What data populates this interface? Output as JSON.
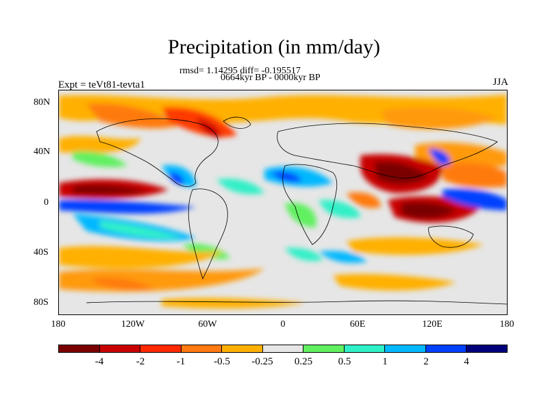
{
  "title": "Precipitation (in mm/day)",
  "stats": "rmsd= 1.14295 diff= -0.195517",
  "period": "0664kyr BP - 0000kyr BP",
  "experiment": "Expt = teVt81-tevta1",
  "season": "JJA",
  "lat_ticks": [
    "80N",
    "40N",
    "0",
    "40S",
    "80S"
  ],
  "lon_ticks": [
    "180",
    "120W",
    "60W",
    "0",
    "60E",
    "120E",
    "180"
  ],
  "colorbar": {
    "labels": [
      "-4",
      "-2",
      "-1",
      "-0.5",
      "-0.25",
      "0.25",
      "0.5",
      "1",
      "2",
      "4"
    ],
    "colors": [
      "#7a0000",
      "#c80000",
      "#ff2a00",
      "#ff7a10",
      "#ffb000",
      "#e6e6e6",
      "#60f060",
      "#30f0c8",
      "#00b8ff",
      "#0040ff",
      "#00007a"
    ]
  }
}
